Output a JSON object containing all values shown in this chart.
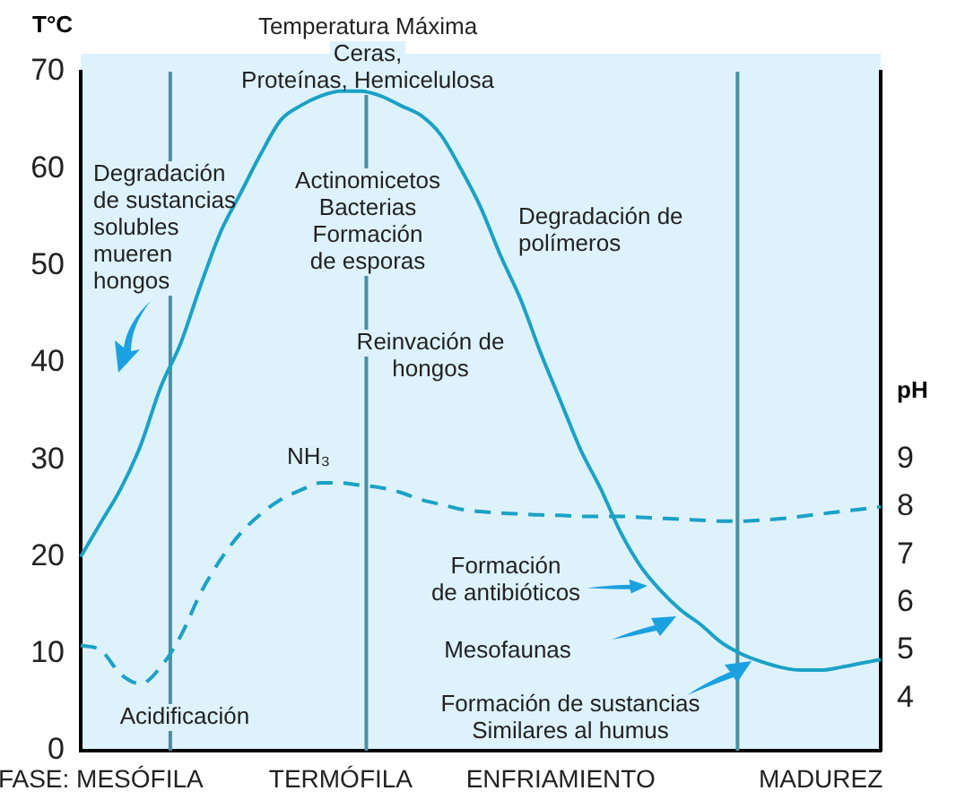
{
  "chart_data": {
    "type": "line",
    "ylabel": "T°C",
    "y2label": "pH",
    "categories": [
      null,
      "FASE: MESÓFILA",
      null,
      null,
      null,
      null,
      null,
      null,
      null,
      null,
      null,
      null,
      null,
      "TERMÓFILA",
      null,
      null,
      null,
      null,
      null,
      null,
      null,
      null,
      null,
      null,
      "ENFRIAMIENTO",
      null,
      null,
      null,
      null,
      null,
      null,
      null,
      null,
      null,
      null,
      null,
      null,
      "MADUREZ",
      null,
      null,
      null
    ],
    "ylim": [
      0,
      70
    ],
    "yticks": [
      0,
      10,
      20,
      30,
      40,
      50,
      60,
      70
    ],
    "y2lim": [
      2.9,
      17.1
    ],
    "y2ticks": [
      4,
      5,
      6,
      7,
      8,
      9
    ],
    "series": [
      {
        "color": "#1ba1c6",
        "values": [
          20,
          23.5,
          27,
          31.5,
          37.5,
          42,
          48,
          53.5,
          57.5,
          61.5,
          65,
          66.5,
          67.5,
          68,
          68,
          67.5,
          66.5,
          65.5,
          63.5,
          60,
          56,
          51,
          46.5,
          41,
          36,
          31,
          27,
          22.5,
          19,
          16.5,
          14.5,
          13,
          11.2,
          10,
          9.2,
          8.6,
          8.3,
          8.3,
          8.6,
          9,
          9.4
        ]
      },
      {
        "color": "#1ba1c6",
        "axis": "y2",
        "line_style": "dashed",
        "values": [
          5.1,
          5.0,
          4.5,
          4.3,
          4.65,
          5.3,
          6.2,
          6.9,
          7.45,
          7.85,
          8.15,
          8.35,
          8.5,
          8.5,
          8.45,
          8.4,
          8.3,
          8.15,
          8.05,
          7.95,
          7.9,
          7.87,
          7.85,
          7.83,
          7.82,
          7.8,
          7.8,
          7.8,
          7.78,
          7.76,
          7.74,
          7.72,
          7.7,
          7.7,
          7.72,
          7.75,
          7.8,
          7.85,
          7.9,
          7.95,
          8.0
        ]
      }
    ],
    "annotations": [
      "Temperatura Máxima\nCeras,\nProteínas, Hemicelulosa",
      "Degradación\nde sustancias\nsolubles\nmueren\nhongos",
      "Actinomicetos\nBacterias\nFormación\nde esporas",
      "Reinvación de\nhongos",
      "Degradación de\npolímeros",
      "NH₃",
      "Formación\nde antibióticos",
      "Mesofaunas",
      "Formación de sustancias\nSimilares al humus",
      "Acidificación"
    ],
    "grid": false,
    "legend": false,
    "marker": "none"
  }
}
